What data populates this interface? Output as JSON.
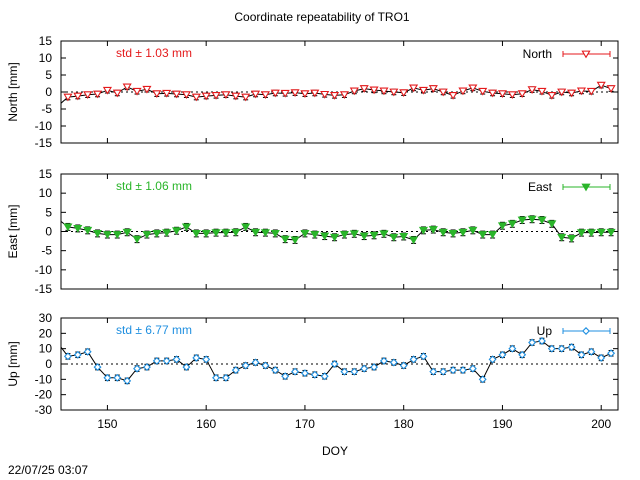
{
  "title": "Coordinate repeatability of TRO1",
  "timestamp": "22/07/25 03:07",
  "xlabel": "DOY",
  "colors": {
    "north": "#e41a1c",
    "east": "#2ab52a",
    "up": "#1f8fe0",
    "errorbar": "#000000"
  },
  "chart_data": [
    {
      "type": "line",
      "panel": "north",
      "ylabel": "North [mm]",
      "legend": "North",
      "legend_position": "top-right",
      "std_label": "std ± 1.03 mm",
      "marker": "triangle-down-open",
      "xlim": [
        145.3,
        201.7
      ],
      "ylim": [
        -15,
        15
      ],
      "yticks": [
        15,
        10,
        5,
        0,
        -5,
        -10,
        -15
      ],
      "xticks": [
        150,
        160,
        170,
        180,
        190,
        200
      ],
      "zero_line": true,
      "x": [
        146,
        147,
        148,
        149,
        150,
        151,
        152,
        153,
        154,
        155,
        156,
        157,
        158,
        159,
        160,
        161,
        162,
        163,
        164,
        165,
        166,
        167,
        168,
        169,
        170,
        171,
        172,
        173,
        174,
        175,
        176,
        177,
        178,
        179,
        180,
        181,
        182,
        183,
        184,
        185,
        186,
        187,
        188,
        189,
        190,
        191,
        192,
        193,
        194,
        195,
        196,
        197,
        198,
        199,
        200,
        201
      ],
      "y": [
        -1.5,
        -1.2,
        -0.8,
        -0.6,
        0.5,
        -0.3,
        1.5,
        0.2,
        0.8,
        -0.5,
        -0.4,
        -0.6,
        -0.8,
        -1.5,
        -1.2,
        -1.0,
        -0.8,
        -1.2,
        -1.5,
        -0.6,
        -0.8,
        -0.3,
        -0.4,
        -0.2,
        -0.5,
        -0.3,
        -0.7,
        -1.0,
        -0.8,
        0.3,
        1.0,
        0.6,
        0.3,
        0.0,
        -0.2,
        1.2,
        0.5,
        1.0,
        0.0,
        -1.0,
        0.3,
        1.2,
        0.2,
        -0.3,
        -0.5,
        -0.8,
        -0.5,
        0.7,
        0.2,
        -1.0,
        0.0,
        -0.3,
        0.3,
        0.2,
        2.0,
        1.0
      ],
      "err": 0.8
    },
    {
      "type": "line",
      "panel": "east",
      "ylabel": "East [mm]",
      "legend": "East",
      "legend_position": "top-right",
      "std_label": "std ± 1.06 mm",
      "marker": "triangle-down-filled",
      "xlim": [
        145.3,
        201.7
      ],
      "ylim": [
        -15,
        15
      ],
      "yticks": [
        15,
        10,
        5,
        0,
        -5,
        -10,
        -15
      ],
      "xticks": [
        150,
        160,
        170,
        180,
        190,
        200
      ],
      "zero_line": true,
      "x": [
        146,
        147,
        148,
        149,
        150,
        151,
        152,
        153,
        154,
        155,
        156,
        157,
        158,
        159,
        160,
        161,
        162,
        163,
        164,
        165,
        166,
        167,
        168,
        169,
        170,
        171,
        172,
        173,
        174,
        175,
        176,
        177,
        178,
        179,
        180,
        181,
        182,
        183,
        184,
        185,
        186,
        187,
        188,
        189,
        190,
        191,
        192,
        193,
        194,
        195,
        196,
        197,
        198,
        199,
        200,
        201
      ],
      "y": [
        1.2,
        0.8,
        0.3,
        -0.5,
        -0.8,
        -0.8,
        -0.2,
        -2.0,
        -0.8,
        -0.5,
        -0.3,
        0.2,
        1.2,
        -0.5,
        -0.5,
        -0.3,
        -0.3,
        -0.2,
        1.2,
        -0.2,
        -0.3,
        -0.5,
        -2.0,
        -2.2,
        -0.5,
        -0.8,
        -1.2,
        -1.5,
        -0.8,
        -0.6,
        -1.2,
        -1.0,
        -0.6,
        -1.5,
        -1.3,
        -2.2,
        0.3,
        0.5,
        -0.2,
        -0.5,
        -0.2,
        0.3,
        -0.8,
        -0.8,
        1.5,
        2.0,
        3.0,
        3.2,
        3.0,
        2.0,
        -1.5,
        -1.8,
        -0.3,
        -0.3,
        -0.2,
        -0.2
      ],
      "err": 0.9
    },
    {
      "type": "line",
      "panel": "up",
      "ylabel": "Up [mm]",
      "legend": "Up",
      "legend_position": "top-right",
      "std_label": "std ± 6.77 mm",
      "marker": "diamond-open",
      "xlim": [
        145.3,
        201.7
      ],
      "ylim": [
        -30,
        30
      ],
      "yticks": [
        30,
        20,
        10,
        0,
        -10,
        -20,
        -30
      ],
      "xticks": [
        150,
        160,
        170,
        180,
        190,
        200
      ],
      "zero_line": true,
      "x": [
        146,
        147,
        148,
        149,
        150,
        151,
        152,
        153,
        154,
        155,
        156,
        157,
        158,
        159,
        160,
        161,
        162,
        163,
        164,
        165,
        166,
        167,
        168,
        169,
        170,
        171,
        172,
        173,
        174,
        175,
        176,
        177,
        178,
        179,
        180,
        181,
        182,
        183,
        184,
        185,
        186,
        187,
        188,
        189,
        190,
        191,
        192,
        193,
        194,
        195,
        196,
        197,
        198,
        199,
        200,
        201
      ],
      "y": [
        5,
        6,
        8,
        -2,
        -9,
        -9,
        -11,
        -3,
        -2,
        2,
        2,
        3,
        -2,
        4,
        3,
        -9,
        -9,
        -4,
        -1,
        1,
        -1,
        -4,
        -8,
        -5,
        -6,
        -7,
        -8,
        0,
        -5,
        -5,
        -3,
        -2,
        2,
        1,
        -1,
        3,
        5,
        -5,
        -5,
        -4,
        -4,
        -3,
        -10,
        3,
        6,
        10,
        6,
        14,
        15,
        10,
        10,
        11,
        6,
        8,
        4,
        7
      ],
      "err": 1.8
    }
  ]
}
